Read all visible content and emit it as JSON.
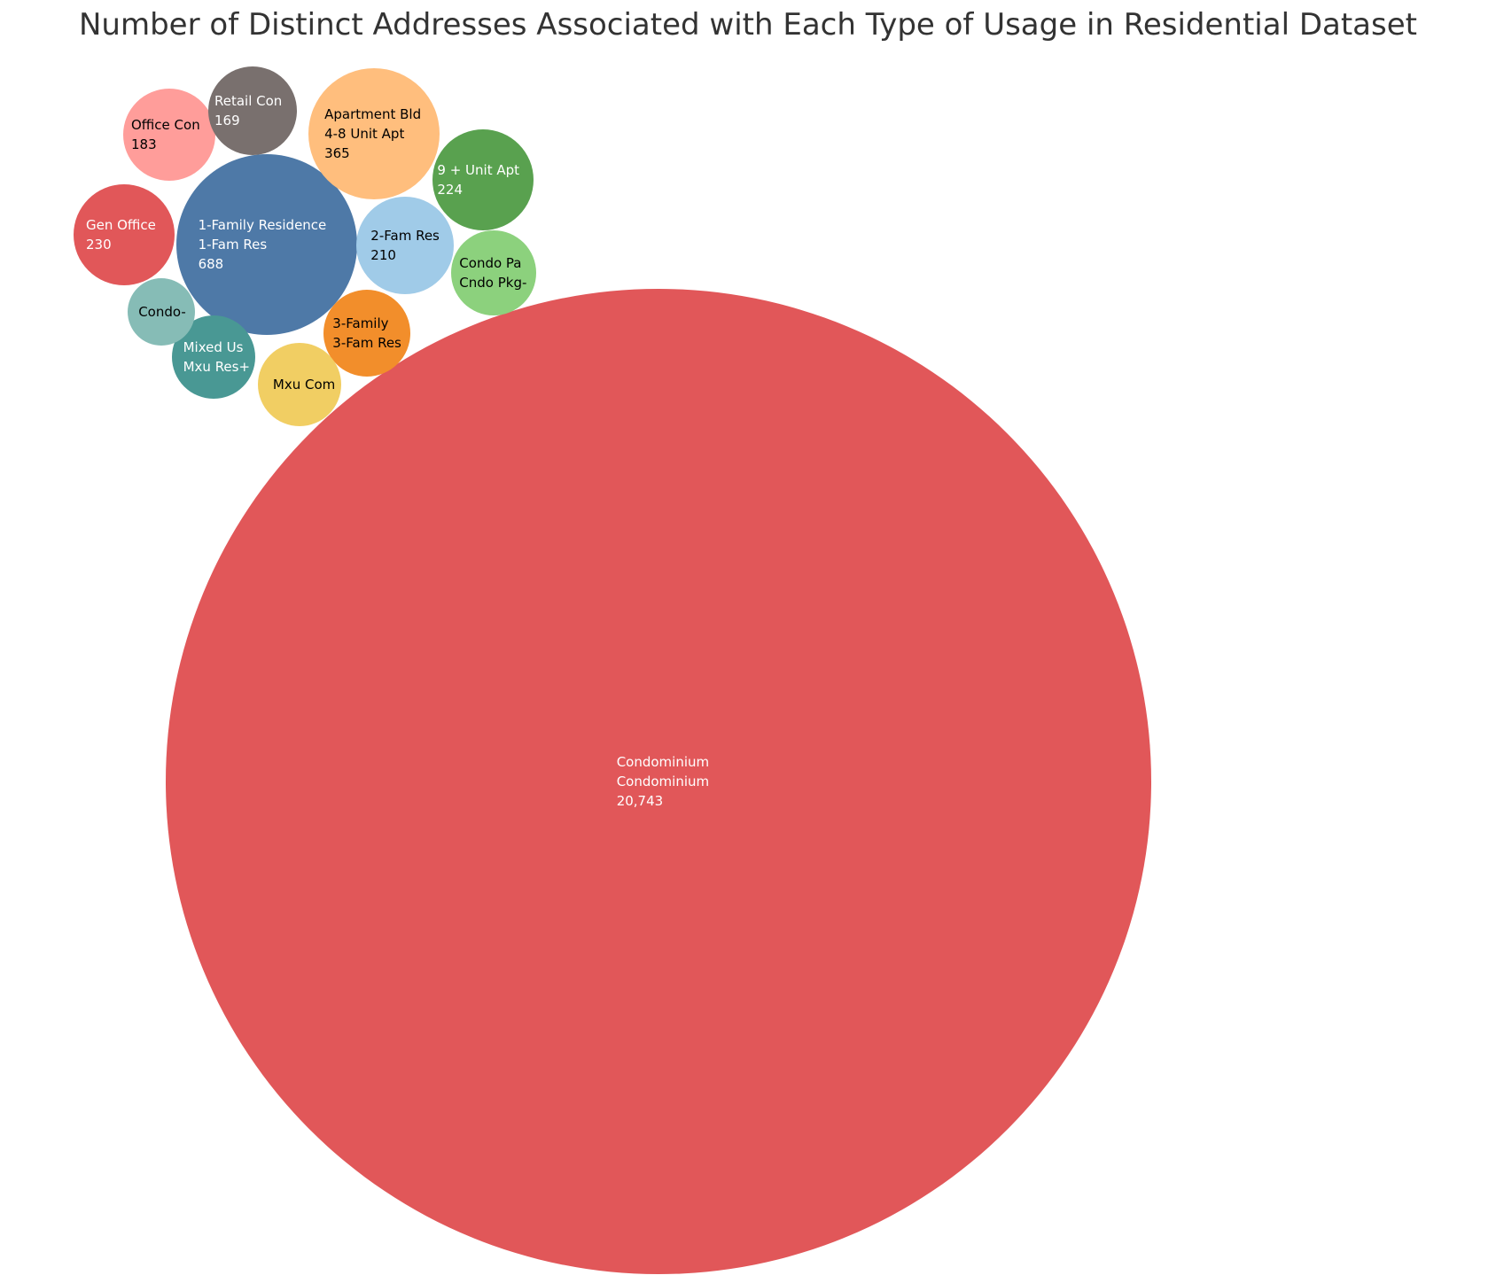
{
  "chart_data": {
    "type": "bubble",
    "title": "Number of Distinct Addresses Associated with Each Type of Usage in Residential Dataset",
    "bubbles": [
      {
        "lines": [
          "Condominium",
          "Condominium",
          "20,743"
        ],
        "value": 20743,
        "color": "#e15759",
        "text_color": "#ffffff"
      },
      {
        "lines": [
          "1-Family Residence",
          "1-Fam Res",
          "688"
        ],
        "value": 688,
        "color": "#4e79a7",
        "text_color": "#ffffff"
      },
      {
        "lines": [
          "Apartment Bld",
          "4-8 Unit Apt",
          "365"
        ],
        "value": 365,
        "color": "#ffbe7d",
        "text_color": "#000000"
      },
      {
        "lines": [
          "Gen Office",
          "230"
        ],
        "value": 230,
        "color": "#e15759",
        "text_color": "#ffffff"
      },
      {
        "lines": [
          "9 + Unit Apt",
          "224"
        ],
        "value": 224,
        "color": "#59a14f",
        "text_color": "#ffffff"
      },
      {
        "lines": [
          "2-Fam Res",
          "210"
        ],
        "value": 210,
        "color": "#a0cbe8",
        "text_color": "#000000"
      },
      {
        "lines": [
          "Office Con",
          "183"
        ],
        "value": 183,
        "color": "#ff9d9a",
        "text_color": "#000000"
      },
      {
        "lines": [
          "Retail Con",
          "169"
        ],
        "value": 169,
        "color": "#79706e",
        "text_color": "#ffffff"
      },
      {
        "lines": [
          "Condo Pa",
          "Cndo Pkg-"
        ],
        "value": 150,
        "color": "#8cd17d",
        "text_color": "#000000"
      },
      {
        "lines": [
          "Mixed Us",
          "Mxu Res+"
        ],
        "value": 145,
        "color": "#499894",
        "text_color": "#ffffff"
      },
      {
        "lines": [
          "3-Family",
          "3-Fam Res"
        ],
        "value": 140,
        "color": "#f28e2b",
        "text_color": "#000000"
      },
      {
        "lines": [
          "Mxu Com"
        ],
        "value": 130,
        "color": "#f1ce63",
        "text_color": "#000000"
      },
      {
        "lines": [
          "Condo-"
        ],
        "value": 85,
        "color": "#86bcb6",
        "text_color": "#000000"
      }
    ]
  }
}
